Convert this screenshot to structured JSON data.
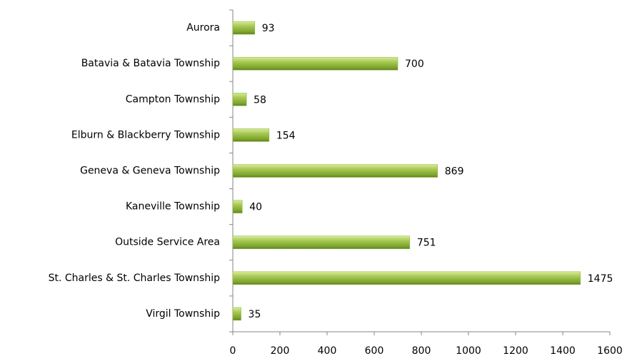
{
  "chart_data": {
    "type": "bar",
    "orientation": "horizontal",
    "categories": [
      "Aurora",
      "Batavia & Batavia Township",
      "Campton Township",
      "Elburn & Blackberry Township",
      "Geneva & Geneva Township",
      "Kaneville Township",
      "Outside Service Area",
      "St. Charles & St. Charles Township",
      "Virgil Township"
    ],
    "values": [
      93,
      700,
      58,
      154,
      869,
      40,
      751,
      1475,
      35
    ],
    "color": "#8db33a",
    "xlim": [
      0,
      1600
    ],
    "xticks": [
      0,
      200,
      400,
      600,
      800,
      1000,
      1200,
      1400,
      1600
    ],
    "grid": false
  }
}
